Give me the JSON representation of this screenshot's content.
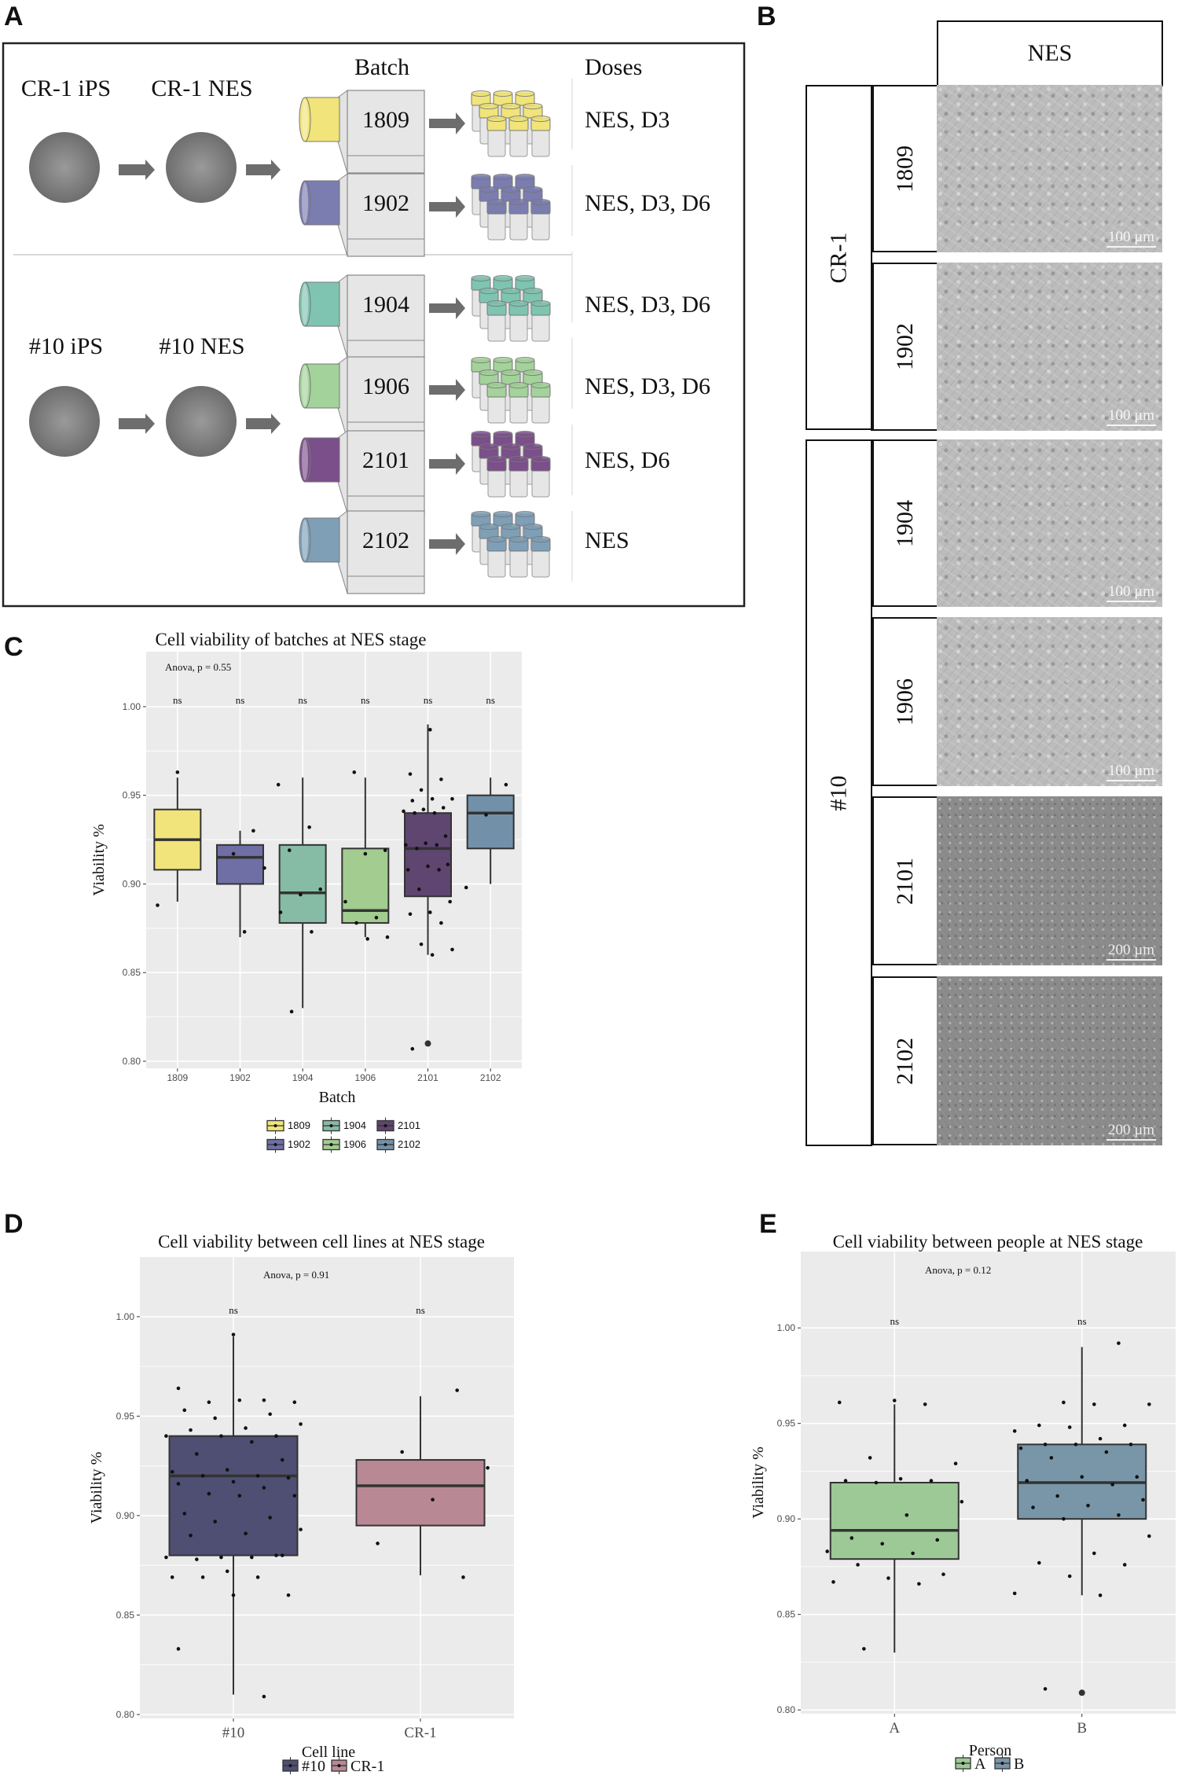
{
  "panel_labels": {
    "a": "A",
    "b": "B",
    "c": "C",
    "d": "D",
    "e": "E"
  },
  "panel_a": {
    "batch_heading": "Batch",
    "doses_heading": "Doses",
    "cell_lines": [
      {
        "ips_label": "CR-1 iPS",
        "nes_label": "CR-1 NES"
      },
      {
        "ips_label": "#10 iPS",
        "nes_label": "#10 NES"
      }
    ],
    "batches": [
      {
        "batch": "1809",
        "color": "#f0e47a",
        "doses": "NES, D3",
        "cell_line": 0
      },
      {
        "batch": "1902",
        "color": "#7b7cb0",
        "doses": "NES, D3, D6",
        "cell_line": 0
      },
      {
        "batch": "1904",
        "color": "#7fc4b0",
        "doses": "NES, D3, D6",
        "cell_line": 1
      },
      {
        "batch": "1906",
        "color": "#a3d29a",
        "doses": "NES, D3, D6",
        "cell_line": 1
      },
      {
        "batch": "2101",
        "color": "#7b4f8a",
        "doses": "NES, D6",
        "cell_line": 1
      },
      {
        "batch": "2102",
        "color": "#7e9fb6",
        "doses": "NES",
        "cell_line": 1
      }
    ]
  },
  "panel_b": {
    "header": "NES",
    "groups": [
      {
        "label": "CR-1"
      },
      {
        "label": "#10"
      }
    ],
    "images": [
      {
        "batch": "1809",
        "scale": "100 µm",
        "tone": "light"
      },
      {
        "batch": "1902",
        "scale": "100 µm",
        "tone": "light"
      },
      {
        "batch": "1904",
        "scale": "100 µm",
        "tone": "light"
      },
      {
        "batch": "1906",
        "scale": "100 µm",
        "tone": "light"
      },
      {
        "batch": "2101",
        "scale": "200 µm",
        "tone": "dark"
      },
      {
        "batch": "2102",
        "scale": "200 µm",
        "tone": "dark"
      }
    ]
  },
  "chart_data": [
    {
      "type": "boxplot",
      "title": "Cell viability of batches at NES stage",
      "xlabel": "Batch",
      "ylabel": "Viability %",
      "annotation": "Anova, p = 0.55",
      "significance": "ns",
      "ylim": [
        0.796,
        1.031
      ],
      "yticks": [
        "0.80",
        "0.85",
        "0.90",
        "0.95",
        "1.00"
      ],
      "grid": true,
      "legend_position": "bottom",
      "categories": [
        "1809",
        "1902",
        "1904",
        "1906",
        "2101",
        "2102"
      ],
      "series": [
        {
          "name": "1809",
          "color": "#f0e47a",
          "q1": 0.908,
          "median": 0.925,
          "q3": 0.942,
          "whisker_low": 0.89,
          "whisker_high": 0.96,
          "outliers": [],
          "points": [
            0.963,
            0.888
          ]
        },
        {
          "name": "1902",
          "color": "#6f6fa6",
          "q1": 0.9,
          "median": 0.915,
          "q3": 0.922,
          "whisker_low": 0.87,
          "whisker_high": 0.93,
          "outliers": [],
          "points": [
            0.93,
            0.917,
            0.909,
            0.873
          ]
        },
        {
          "name": "1904",
          "color": "#86bba6",
          "q1": 0.878,
          "median": 0.895,
          "q3": 0.922,
          "whisker_low": 0.83,
          "whisker_high": 0.96,
          "outliers": [],
          "points": [
            0.956,
            0.932,
            0.919,
            0.897,
            0.894,
            0.884,
            0.873,
            0.828
          ]
        },
        {
          "name": "1906",
          "color": "#a2cc90",
          "q1": 0.878,
          "median": 0.885,
          "q3": 0.92,
          "whisker_low": 0.87,
          "whisker_high": 0.96,
          "outliers": [],
          "points": [
            0.963,
            0.919,
            0.917,
            0.89,
            0.881,
            0.878,
            0.87,
            0.869
          ]
        },
        {
          "name": "2101",
          "color": "#5e4670",
          "q1": 0.893,
          "median": 0.92,
          "q3": 0.94,
          "whisker_low": 0.86,
          "whisker_high": 0.99,
          "outliers": [
            0.81
          ],
          "points": [
            0.987,
            0.962,
            0.959,
            0.953,
            0.948,
            0.948,
            0.947,
            0.943,
            0.942,
            0.941,
            0.94,
            0.94,
            0.927,
            0.923,
            0.922,
            0.922,
            0.92,
            0.911,
            0.91,
            0.908,
            0.908,
            0.897,
            0.89,
            0.884,
            0.883,
            0.878,
            0.866,
            0.863,
            0.86,
            0.807
          ]
        },
        {
          "name": "2102",
          "color": "#7390a9",
          "q1": 0.92,
          "median": 0.94,
          "q3": 0.95,
          "whisker_low": 0.9,
          "whisker_high": 0.96,
          "outliers": [],
          "points": [
            0.956,
            0.939,
            0.898
          ]
        }
      ]
    },
    {
      "type": "boxplot",
      "title": "Cell viability between cell lines at NES stage",
      "xlabel": "Cell line",
      "ylabel": "Viability %",
      "annotation": "Anova, p = 0.91",
      "significance": "ns",
      "ylim": [
        0.798,
        1.03
      ],
      "yticks": [
        "0.80",
        "0.85",
        "0.90",
        "0.95",
        "1.00"
      ],
      "grid": true,
      "legend_position": "bottom",
      "categories": [
        "#10",
        "CR-1"
      ],
      "series": [
        {
          "name": "#10",
          "color": "#4e4f72",
          "q1": 0.88,
          "median": 0.92,
          "q3": 0.94,
          "whisker_low": 0.81,
          "whisker_high": 0.99,
          "outliers": [],
          "points": [
            0.991,
            0.964,
            0.958,
            0.957,
            0.957,
            0.958,
            0.953,
            0.951,
            0.949,
            0.946,
            0.944,
            0.943,
            0.94,
            0.94,
            0.94,
            0.937,
            0.931,
            0.928,
            0.923,
            0.922,
            0.92,
            0.92,
            0.919,
            0.917,
            0.916,
            0.914,
            0.911,
            0.91,
            0.91,
            0.901,
            0.899,
            0.897,
            0.893,
            0.891,
            0.89,
            0.88,
            0.879,
            0.879,
            0.879,
            0.878,
            0.88,
            0.872,
            0.869,
            0.869,
            0.869,
            0.86,
            0.86,
            0.833,
            0.809
          ]
        },
        {
          "name": "CR-1",
          "color": "#b98895",
          "q1": 0.895,
          "median": 0.915,
          "q3": 0.928,
          "whisker_low": 0.87,
          "whisker_high": 0.96,
          "outliers": [],
          "points": [
            0.963,
            0.932,
            0.924,
            0.908,
            0.886,
            0.869
          ]
        }
      ]
    },
    {
      "type": "boxplot",
      "title": "Cell viability between people at NES stage",
      "xlabel": "Person",
      "ylabel": "Viability %",
      "annotation": "Anova, p = 0.12",
      "significance": "ns",
      "ylim": [
        0.798,
        1.04
      ],
      "yticks": [
        "0.80",
        "0.85",
        "0.90",
        "0.95",
        "1.00"
      ],
      "grid": true,
      "legend_title": "Person",
      "legend_position": "bottom",
      "categories": [
        "A",
        "B"
      ],
      "series": [
        {
          "name": "A",
          "color": "#9dc997",
          "q1": 0.879,
          "median": 0.894,
          "q3": 0.919,
          "whisker_low": 0.83,
          "whisker_high": 0.96,
          "outliers": [],
          "points": [
            0.962,
            0.961,
            0.96,
            0.932,
            0.929,
            0.921,
            0.92,
            0.92,
            0.919,
            0.909,
            0.902,
            0.89,
            0.889,
            0.887,
            0.883,
            0.882,
            0.876,
            0.871,
            0.869,
            0.867,
            0.866,
            0.832
          ]
        },
        {
          "name": "B",
          "color": "#7896a8",
          "q1": 0.9,
          "median": 0.919,
          "q3": 0.939,
          "whisker_low": 0.86,
          "whisker_high": 0.99,
          "outliers": [
            0.809
          ],
          "points": [
            0.992,
            0.961,
            0.96,
            0.96,
            0.949,
            0.949,
            0.948,
            0.946,
            0.942,
            0.939,
            0.939,
            0.939,
            0.937,
            0.935,
            0.932,
            0.922,
            0.922,
            0.92,
            0.918,
            0.912,
            0.91,
            0.907,
            0.906,
            0.902,
            0.9,
            0.891,
            0.882,
            0.877,
            0.876,
            0.87,
            0.861,
            0.86,
            0.811
          ]
        }
      ]
    }
  ]
}
